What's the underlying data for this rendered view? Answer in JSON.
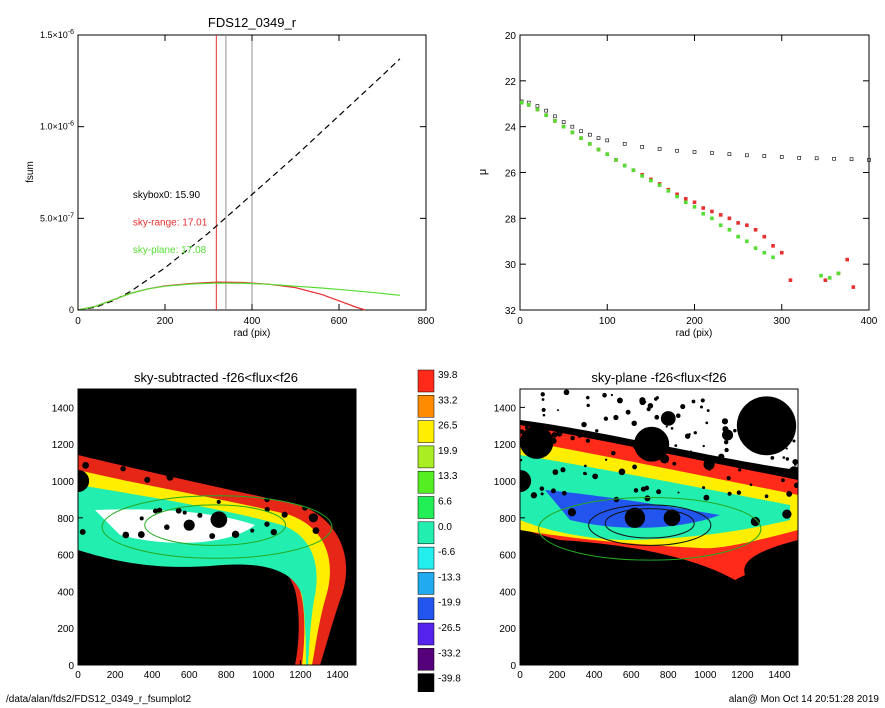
{
  "chart_data": [
    {
      "type": "line",
      "title": "FDS12_0349_r",
      "xlabel": "rad (pix)",
      "ylabel": "fsum",
      "xlim": [
        0,
        800
      ],
      "ylim": [
        0,
        1.5e-06
      ],
      "x_ticks": [
        "0",
        "200",
        "400",
        "600",
        "800"
      ],
      "y_ticks": [
        {
          "value": 0,
          "label": "0"
        },
        {
          "value": 5e-07,
          "label": "5.0×10",
          "exp": "-7"
        },
        {
          "value": 1e-06,
          "label": "1.0×10",
          "exp": "-6"
        },
        {
          "value": 1.5e-06,
          "label": "1.5×10",
          "exp": "-6"
        }
      ],
      "vlines": [
        {
          "x": 318,
          "color": "#e53030"
        },
        {
          "x": 340,
          "color": "#909090"
        },
        {
          "x": 400,
          "color": "#909090"
        }
      ],
      "annotations": [
        {
          "text": "skybox0: 15.90",
          "color": "#000000",
          "x": 195,
          "y": 6.1e-07
        },
        {
          "text": "sky-range: 17.01",
          "color": "#e53030",
          "x": 195,
          "y": 4.6e-07
        },
        {
          "text": "sky-plane: 17.08",
          "color": "#55dd33",
          "x": 195,
          "y": 3.1e-07
        }
      ],
      "series": [
        {
          "color": "#000000",
          "dash": true,
          "x": [
            0,
            40,
            80,
            120,
            200,
            300,
            400,
            500,
            600,
            700,
            740
          ],
          "y": [
            0,
            1.5e-08,
            5e-08,
            1e-07,
            2.3e-07,
            4.2e-07,
            6.3e-07,
            8.4e-07,
            1.06e-06,
            1.28e-06,
            1.37e-06
          ]
        },
        {
          "color": "#e53030",
          "dash": false,
          "x": [
            0,
            40,
            80,
            120,
            160,
            200,
            260,
            320,
            380,
            440,
            500,
            560,
            600,
            640,
            660
          ],
          "y": [
            0,
            2e-08,
            5.5e-08,
            9e-08,
            1.15e-07,
            1.32e-07,
            1.45e-07,
            1.52e-07,
            1.5e-07,
            1.4e-07,
            1.22e-07,
            8.5e-08,
            5e-08,
            1.5e-08,
            0
          ]
        },
        {
          "color": "#55dd33",
          "dash": false,
          "x": [
            0,
            40,
            80,
            120,
            160,
            200,
            260,
            320,
            380,
            440,
            500,
            560,
            620,
            680,
            740
          ],
          "y": [
            0,
            2e-08,
            5.5e-08,
            9e-08,
            1.15e-07,
            1.3e-07,
            1.42e-07,
            1.47e-07,
            1.46e-07,
            1.4e-07,
            1.3e-07,
            1.2e-07,
            1.08e-07,
            9.5e-08,
            8e-08
          ]
        }
      ]
    },
    {
      "type": "scatter",
      "title": "",
      "xlabel": "rad (pix)",
      "ylabel": "μ",
      "xlim": [
        0,
        400
      ],
      "ylim": [
        32,
        20
      ],
      "x_ticks": [
        "0",
        "100",
        "200",
        "300",
        "400"
      ],
      "y_ticks": [
        "20",
        "22",
        "24",
        "26",
        "28",
        "30",
        "32"
      ],
      "series": [
        {
          "color": "#000000",
          "marker": "square",
          "x": [
            2,
            10,
            20,
            30,
            40,
            50,
            60,
            70,
            80,
            90,
            100,
            120,
            140,
            160,
            180,
            200,
            220,
            240,
            260,
            280,
            300,
            320,
            340,
            360,
            380,
            400
          ],
          "y": [
            22.9,
            22.95,
            23.1,
            23.3,
            23.55,
            23.8,
            24.0,
            24.2,
            24.35,
            24.5,
            24.6,
            24.75,
            24.88,
            24.97,
            25.05,
            25.1,
            25.15,
            25.2,
            25.25,
            25.28,
            25.32,
            25.36,
            25.38,
            25.4,
            25.42,
            25.45
          ]
        },
        {
          "color": "#e53030",
          "marker": "square",
          "x": [
            2,
            10,
            20,
            30,
            40,
            50,
            60,
            70,
            80,
            90,
            100,
            110,
            120,
            130,
            140,
            150,
            160,
            170,
            180,
            190,
            200,
            210,
            220,
            230,
            240,
            250,
            260,
            270,
            280,
            290,
            300,
            310,
            350,
            365,
            375,
            382
          ],
          "y": [
            22.95,
            23.05,
            23.25,
            23.5,
            23.75,
            24.0,
            24.25,
            24.5,
            24.75,
            25.0,
            25.2,
            25.45,
            25.7,
            25.9,
            26.1,
            26.3,
            26.5,
            26.75,
            26.95,
            27.15,
            27.3,
            27.55,
            27.7,
            27.85,
            28.0,
            28.2,
            28.3,
            28.5,
            28.8,
            29.2,
            29.5,
            30.7,
            30.7,
            30.4,
            29.8,
            31.0
          ]
        },
        {
          "color": "#55dd33",
          "marker": "square",
          "x": [
            2,
            10,
            20,
            30,
            40,
            50,
            60,
            70,
            80,
            90,
            100,
            110,
            120,
            130,
            140,
            150,
            160,
            170,
            180,
            190,
            200,
            210,
            220,
            230,
            240,
            250,
            260,
            270,
            280,
            290,
            345,
            355,
            365
          ],
          "y": [
            22.95,
            23.05,
            23.25,
            23.5,
            23.75,
            24.0,
            24.25,
            24.5,
            24.75,
            25.0,
            25.2,
            25.45,
            25.7,
            25.9,
            26.15,
            26.35,
            26.55,
            26.8,
            27.05,
            27.3,
            27.5,
            27.8,
            28.0,
            28.3,
            28.5,
            28.8,
            29.0,
            29.3,
            29.5,
            29.7,
            30.5,
            30.6,
            30.4
          ]
        }
      ]
    },
    {
      "type": "heatmap",
      "title": "sky-subtracted -f26<flux<f26",
      "xlim": [
        0,
        1500
      ],
      "ylim": [
        0,
        1500
      ],
      "x_ticks": [
        "0",
        "200",
        "400",
        "600",
        "800",
        "1000",
        "1200",
        "1400"
      ],
      "y_ticks": [
        "0",
        "200",
        "400",
        "600",
        "800",
        "1000",
        "1200",
        "1400"
      ],
      "ellipses": [
        {
          "cx": 750,
          "cy": 750,
          "rx": 620,
          "ry": 170,
          "color": "#22aa22"
        },
        {
          "cx": 740,
          "cy": 760,
          "rx": 380,
          "ry": 110,
          "color": "#22aa22"
        }
      ],
      "masks": [
        {
          "x": 760,
          "y": 790,
          "r": 45
        },
        {
          "x": 600,
          "y": 760,
          "r": 30
        },
        {
          "x": 0,
          "y": 1000,
          "r": 60
        },
        {
          "x": 850,
          "y": 710,
          "r": 20
        },
        {
          "x": 1270,
          "y": 800,
          "r": 25
        },
        {
          "x": 1300,
          "y": 870,
          "r": 18
        },
        {
          "x": 440,
          "y": 840,
          "r": 15
        },
        {
          "x": 1020,
          "y": 900,
          "r": 15
        }
      ]
    },
    {
      "type": "heatmap",
      "title": "sky-plane -f26<flux<f26",
      "xlim": [
        0,
        1500
      ],
      "ylim": [
        0,
        1500
      ],
      "x_ticks": [
        "0",
        "200",
        "400",
        "600",
        "800",
        "1000",
        "1200",
        "1400"
      ],
      "y_ticks": [
        "0",
        "200",
        "400",
        "600",
        "800",
        "1000",
        "1200",
        "1400"
      ],
      "ellipses": [
        {
          "cx": 700,
          "cy": 740,
          "rx": 600,
          "ry": 170,
          "color": "#22aa22"
        },
        {
          "cx": 700,
          "cy": 760,
          "rx": 330,
          "ry": 110,
          "color": "#111111"
        },
        {
          "cx": 700,
          "cy": 770,
          "rx": 240,
          "ry": 80,
          "color": "#111111"
        }
      ],
      "masks": [
        {
          "x": 1330,
          "y": 1300,
          "r": 160
        },
        {
          "x": 90,
          "y": 1210,
          "r": 90
        },
        {
          "x": 710,
          "y": 1200,
          "r": 95
        },
        {
          "x": 0,
          "y": 1000,
          "r": 60
        },
        {
          "x": 800,
          "y": 1340,
          "r": 40
        },
        {
          "x": 1120,
          "y": 1250,
          "r": 30
        },
        {
          "x": 1020,
          "y": 1090,
          "r": 30
        },
        {
          "x": 780,
          "y": 1120,
          "r": 25
        },
        {
          "x": 1480,
          "y": 1050,
          "r": 30
        },
        {
          "x": 620,
          "y": 800,
          "r": 55
        },
        {
          "x": 820,
          "y": 800,
          "r": 45
        },
        {
          "x": 1270,
          "y": 780,
          "r": 25
        },
        {
          "x": 280,
          "y": 830,
          "r": 22
        },
        {
          "x": 550,
          "y": 1050,
          "r": 18
        },
        {
          "x": 1440,
          "y": 820,
          "r": 25
        }
      ]
    }
  ],
  "colorbar": {
    "labels": [
      "39.8",
      "33.2",
      "26.5",
      "19.9",
      "13.3",
      "6.6",
      "0.0",
      "-6.6",
      "-13.3",
      "-19.9",
      "-26.5",
      "-33.2",
      "-39.8"
    ],
    "colors": [
      "#ff2a1a",
      "#ff8c00",
      "#ffee00",
      "#a8ee22",
      "#55ee22",
      "#22ee55",
      "#22eeb0",
      "#22eeee",
      "#22aaee",
      "#2255ee",
      "#5522ee",
      "#55007a",
      "#000000"
    ]
  },
  "footer": {
    "path": "/data/alan/fds2/FDS12_0349_r_fsumplot2",
    "stamp": "alan@  Mon Oct 14 20:51:28 2019"
  }
}
